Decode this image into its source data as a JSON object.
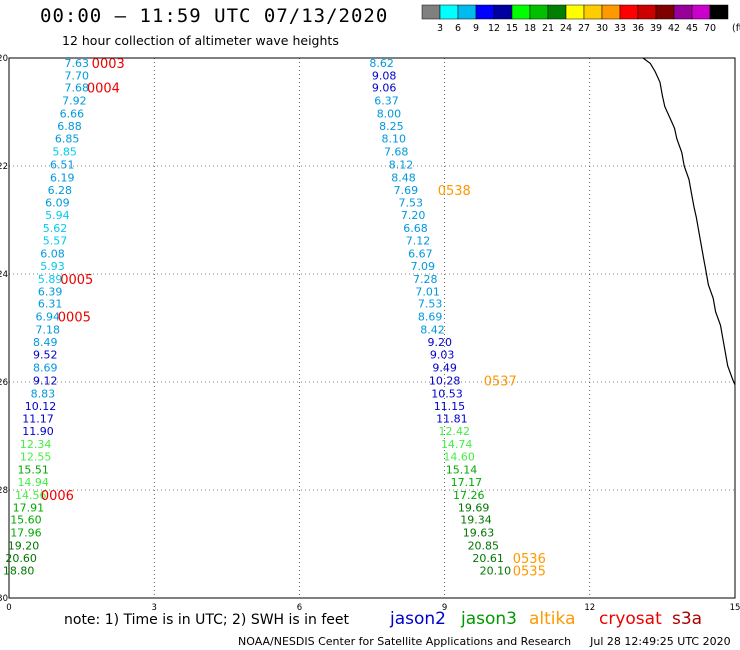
{
  "header": {
    "title": "00:00 – 11:59 UTC 07/13/2020",
    "subtitle": "12 hour collection of altimeter wave heights"
  },
  "colorbar": {
    "labels": [
      "3",
      "6",
      "9",
      "12",
      "15",
      "18",
      "21",
      "24",
      "27",
      "30",
      "33",
      "36",
      "39",
      "42",
      "45",
      "70"
    ],
    "unit": "(ft)",
    "colors": [
      "#808080",
      "#00ffff",
      "#00bbee",
      "#0000ff",
      "#0000a0",
      "#00ff00",
      "#00c000",
      "#008000",
      "#ffff00",
      "#ffcc00",
      "#ff9900",
      "#ff0000",
      "#cc0000",
      "#800000",
      "#990099",
      "#cc00cc",
      "#000000"
    ]
  },
  "footer": {
    "note": "note: 1) Time is in UTC; 2) SWH is in feet",
    "satellites": [
      {
        "name": "jason2",
        "color": "#0000cc"
      },
      {
        "name": "jason3",
        "color": "#009900"
      },
      {
        "name": "altika",
        "color": "#ff9900"
      },
      {
        "name": "cryosat",
        "color": "#ee0000"
      },
      {
        "name": "s3a",
        "color": "#aa0000"
      }
    ],
    "credit": "NOAA/NESDIS Center for Satellite Applications and Research",
    "timestamp": "Jul 28 12:49:25 UTC 2020"
  },
  "map": {
    "x_ticks": [
      0,
      3,
      6,
      9,
      12,
      15
    ],
    "y_ticks": [
      -20,
      -22,
      -24,
      -26,
      -28,
      -30
    ],
    "x_range": [
      0,
      15
    ],
    "y_range": [
      -20,
      -30
    ],
    "value_colors": [
      {
        "max": 6,
        "color": "#00ccee"
      },
      {
        "max": 9,
        "color": "#0099dd"
      },
      {
        "max": 12,
        "color": "#0000cc"
      },
      {
        "max": 15,
        "color": "#44ee44"
      },
      {
        "max": 18,
        "color": "#00aa00"
      },
      {
        "max": 21,
        "color": "#007700"
      }
    ],
    "time_color_cryosat": "#ee0000",
    "time_color_altika": "#ff9900",
    "tracks": [
      {
        "name": "cryosat",
        "readings": [
          {
            "x": 1.4,
            "y": -20.09,
            "v": "7.63"
          },
          {
            "x": 1.4,
            "y": -20.32,
            "v": "7.70"
          },
          {
            "x": 1.4,
            "y": -20.55,
            "v": "7.68"
          },
          {
            "x": 1.35,
            "y": -20.79,
            "v": "7.92"
          },
          {
            "x": 1.3,
            "y": -21.03,
            "v": "6.66"
          },
          {
            "x": 1.25,
            "y": -21.26,
            "v": "6.88"
          },
          {
            "x": 1.2,
            "y": -21.49,
            "v": "6.85"
          },
          {
            "x": 1.15,
            "y": -21.73,
            "v": "5.85"
          },
          {
            "x": 1.1,
            "y": -21.97,
            "v": "6.51"
          },
          {
            "x": 1.1,
            "y": -22.21,
            "v": "6.19"
          },
          {
            "x": 1.05,
            "y": -22.44,
            "v": "6.28"
          },
          {
            "x": 1.0,
            "y": -22.68,
            "v": "6.09"
          },
          {
            "x": 1.0,
            "y": -22.91,
            "v": "5.94"
          },
          {
            "x": 0.95,
            "y": -23.15,
            "v": "5.62"
          },
          {
            "x": 0.95,
            "y": -23.38,
            "v": "5.57"
          },
          {
            "x": 0.9,
            "y": -23.62,
            "v": "6.08"
          },
          {
            "x": 0.9,
            "y": -23.85,
            "v": "5.93"
          },
          {
            "x": 0.85,
            "y": -24.09,
            "v": "5.89"
          },
          {
            "x": 0.85,
            "y": -24.32,
            "v": "6.39"
          },
          {
            "x": 0.85,
            "y": -24.55,
            "v": "6.31"
          },
          {
            "x": 0.8,
            "y": -24.79,
            "v": "6.94"
          },
          {
            "x": 0.8,
            "y": -25.03,
            "v": "7.18"
          },
          {
            "x": 0.75,
            "y": -25.26,
            "v": "8.49"
          },
          {
            "x": 0.75,
            "y": -25.49,
            "v": "9.52"
          },
          {
            "x": 0.75,
            "y": -25.73,
            "v": "8.69"
          },
          {
            "x": 0.75,
            "y": -25.97,
            "v": "9.12"
          },
          {
            "x": 0.7,
            "y": -26.21,
            "v": "8.83"
          },
          {
            "x": 0.65,
            "y": -26.44,
            "v": "10.12"
          },
          {
            "x": 0.6,
            "y": -26.68,
            "v": "11.17"
          },
          {
            "x": 0.6,
            "y": -26.91,
            "v": "11.90"
          },
          {
            "x": 0.55,
            "y": -27.15,
            "v": "12.34"
          },
          {
            "x": 0.55,
            "y": -27.38,
            "v": "12.55"
          },
          {
            "x": 0.5,
            "y": -27.62,
            "v": "15.51"
          },
          {
            "x": 0.5,
            "y": -27.85,
            "v": "14.94"
          },
          {
            "x": 0.45,
            "y": -28.09,
            "v": "14.56"
          },
          {
            "x": 0.4,
            "y": -28.32,
            "v": "17.91"
          },
          {
            "x": 0.35,
            "y": -28.55,
            "v": "15.60"
          },
          {
            "x": 0.35,
            "y": -28.79,
            "v": "17.96"
          },
          {
            "x": 0.3,
            "y": -29.03,
            "v": "19.20"
          },
          {
            "x": 0.25,
            "y": -29.26,
            "v": "20.60"
          },
          {
            "x": 0.2,
            "y": -29.49,
            "v": "18.80"
          }
        ],
        "times": [
          {
            "x": 2.05,
            "y": -20.09,
            "t": "0003"
          },
          {
            "x": 1.95,
            "y": -20.55,
            "t": "0004"
          },
          {
            "x": 1.4,
            "y": -24.09,
            "t": "0005"
          },
          {
            "x": 1.35,
            "y": -24.79,
            "t": "0005"
          },
          {
            "x": 1.0,
            "y": -28.09,
            "t": "0006"
          }
        ]
      },
      {
        "name": "altika",
        "readings": [
          {
            "x": 7.7,
            "y": -20.09,
            "v": "8.62"
          },
          {
            "x": 7.75,
            "y": -20.32,
            "v": "9.08"
          },
          {
            "x": 7.75,
            "y": -20.55,
            "v": "9.06"
          },
          {
            "x": 7.8,
            "y": -20.79,
            "v": "6.37"
          },
          {
            "x": 7.85,
            "y": -21.03,
            "v": "8.00"
          },
          {
            "x": 7.9,
            "y": -21.26,
            "v": "8.25"
          },
          {
            "x": 7.95,
            "y": -21.49,
            "v": "8.10"
          },
          {
            "x": 8.0,
            "y": -21.73,
            "v": "7.68"
          },
          {
            "x": 8.1,
            "y": -21.97,
            "v": "8.12"
          },
          {
            "x": 8.15,
            "y": -22.21,
            "v": "8.48"
          },
          {
            "x": 8.2,
            "y": -22.44,
            "v": "7.69"
          },
          {
            "x": 8.3,
            "y": -22.68,
            "v": "7.53"
          },
          {
            "x": 8.35,
            "y": -22.91,
            "v": "7.20"
          },
          {
            "x": 8.4,
            "y": -23.15,
            "v": "6.68"
          },
          {
            "x": 8.45,
            "y": -23.38,
            "v": "7.12"
          },
          {
            "x": 8.5,
            "y": -23.62,
            "v": "6.67"
          },
          {
            "x": 8.55,
            "y": -23.85,
            "v": "7.09"
          },
          {
            "x": 8.6,
            "y": -24.09,
            "v": "7.28"
          },
          {
            "x": 8.65,
            "y": -24.32,
            "v": "7.01"
          },
          {
            "x": 8.7,
            "y": -24.55,
            "v": "7.53"
          },
          {
            "x": 8.7,
            "y": -24.79,
            "v": "8.69"
          },
          {
            "x": 8.75,
            "y": -25.03,
            "v": "8.42"
          },
          {
            "x": 8.9,
            "y": -25.26,
            "v": "9.20"
          },
          {
            "x": 8.95,
            "y": -25.49,
            "v": "9.03"
          },
          {
            "x": 9.0,
            "y": -25.73,
            "v": "9.49"
          },
          {
            "x": 9.0,
            "y": -25.97,
            "v": "10.28"
          },
          {
            "x": 9.05,
            "y": -26.21,
            "v": "10.53"
          },
          {
            "x": 9.1,
            "y": -26.44,
            "v": "11.15"
          },
          {
            "x": 9.15,
            "y": -26.68,
            "v": "11.81"
          },
          {
            "x": 9.2,
            "y": -26.91,
            "v": "12.42"
          },
          {
            "x": 9.25,
            "y": -27.15,
            "v": "14.74"
          },
          {
            "x": 9.3,
            "y": -27.38,
            "v": "14.60"
          },
          {
            "x": 9.35,
            "y": -27.62,
            "v": "15.14"
          },
          {
            "x": 9.45,
            "y": -27.85,
            "v": "17.17"
          },
          {
            "x": 9.5,
            "y": -28.09,
            "v": "17.26"
          },
          {
            "x": 9.6,
            "y": -28.32,
            "v": "19.69"
          },
          {
            "x": 9.65,
            "y": -28.55,
            "v": "19.34"
          },
          {
            "x": 9.7,
            "y": -28.79,
            "v": "19.63"
          },
          {
            "x": 9.8,
            "y": -29.03,
            "v": "20.85"
          },
          {
            "x": 9.9,
            "y": -29.26,
            "v": "20.61"
          },
          {
            "x": 10.05,
            "y": -29.49,
            "v": "20.10"
          }
        ],
        "times": [
          {
            "x": 9.2,
            "y": -22.44,
            "t": "0538"
          },
          {
            "x": 10.15,
            "y": -25.97,
            "t": "0537"
          },
          {
            "x": 10.75,
            "y": -29.26,
            "t": "0536"
          },
          {
            "x": 10.75,
            "y": -29.49,
            "t": "0535"
          }
        ]
      }
    ],
    "coastline": [
      [
        13.1,
        -20.0
      ],
      [
        13.25,
        -20.1
      ],
      [
        13.35,
        -20.25
      ],
      [
        13.45,
        -20.45
      ],
      [
        13.5,
        -20.7
      ],
      [
        13.55,
        -20.9
      ],
      [
        13.65,
        -21.1
      ],
      [
        13.75,
        -21.3
      ],
      [
        13.8,
        -21.5
      ],
      [
        13.9,
        -21.75
      ],
      [
        13.95,
        -22.0
      ],
      [
        14.05,
        -22.25
      ],
      [
        14.1,
        -22.5
      ],
      [
        14.15,
        -22.75
      ],
      [
        14.2,
        -22.95
      ],
      [
        14.25,
        -23.2
      ],
      [
        14.3,
        -23.45
      ],
      [
        14.35,
        -23.7
      ],
      [
        14.4,
        -23.95
      ],
      [
        14.45,
        -24.2
      ],
      [
        14.55,
        -24.45
      ],
      [
        14.6,
        -24.7
      ],
      [
        14.7,
        -24.95
      ],
      [
        14.75,
        -25.2
      ],
      [
        14.8,
        -25.45
      ],
      [
        14.85,
        -25.7
      ],
      [
        14.95,
        -25.95
      ],
      [
        15.0,
        -26.05
      ]
    ]
  }
}
